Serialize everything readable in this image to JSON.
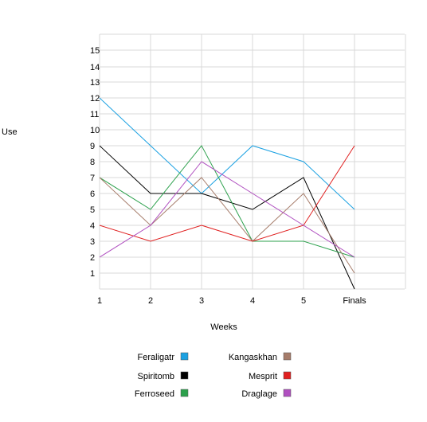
{
  "chart_data": {
    "type": "line",
    "xlabel": "Weeks",
    "ylabel": "Use",
    "categories": [
      "1",
      "2",
      "3",
      "4",
      "5",
      "Finals"
    ],
    "y_ticks": [
      1,
      2,
      3,
      4,
      5,
      6,
      7,
      8,
      9,
      10,
      11,
      12,
      13,
      14,
      15
    ],
    "ylim": [
      0,
      16
    ],
    "grid": true,
    "legend_placement": "bottom",
    "series": [
      {
        "name": "Feraligatr",
        "color": "#1ba1e2",
        "values": [
          12,
          9,
          6,
          9,
          8,
          5
        ]
      },
      {
        "name": "Spiritomb",
        "color": "#000000",
        "values": [
          9,
          6,
          6,
          5,
          7,
          0
        ]
      },
      {
        "name": "Ferroseed",
        "color": "#2ca04c",
        "values": [
          7,
          5,
          9,
          3,
          3,
          2
        ]
      },
      {
        "name": "Kangaskhan",
        "color": "#a67c6a",
        "values": [
          7,
          4,
          7,
          3,
          6,
          1
        ]
      },
      {
        "name": "Mesprit",
        "color": "#e02020",
        "values": [
          4,
          3,
          4,
          3,
          4,
          9
        ]
      },
      {
        "name": "Draglage",
        "color": "#b04fc0",
        "values": [
          2,
          4,
          8,
          6,
          4,
          2
        ]
      }
    ]
  }
}
